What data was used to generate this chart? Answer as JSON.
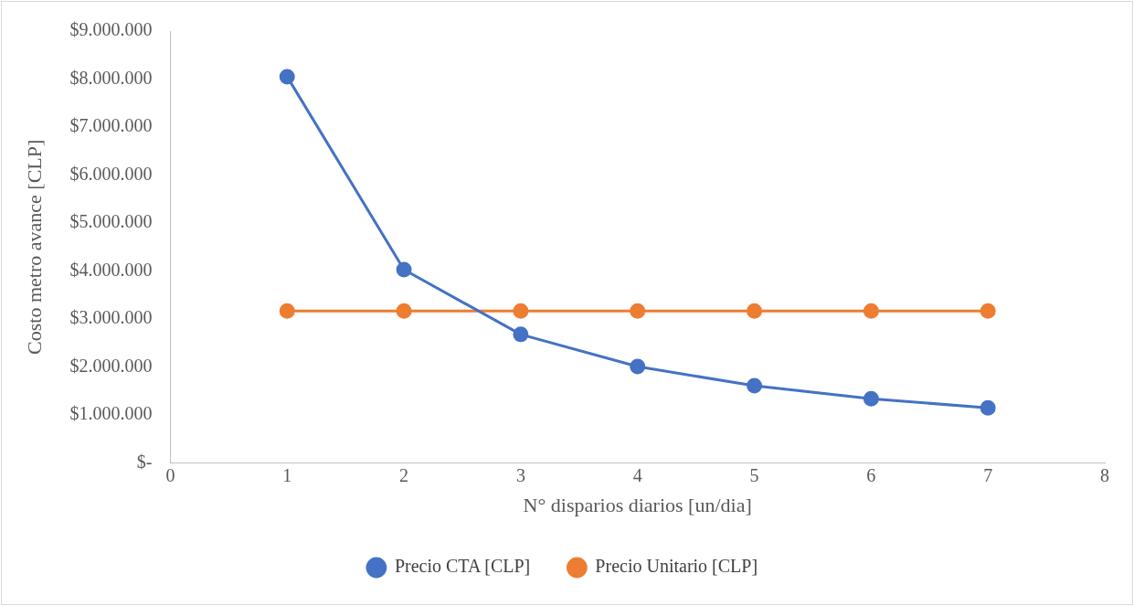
{
  "chart_data": {
    "type": "line",
    "xlabel": "N° disparios diarios [un/dia]",
    "ylabel": "Costo metro avance [CLP]",
    "x": [
      1,
      2,
      3,
      4,
      5,
      6,
      7
    ],
    "series": [
      {
        "name": "Precio CTA [CLP]",
        "color": "#4472c4",
        "values": [
          8050000,
          4030000,
          2680000,
          2010000,
          1610000,
          1340000,
          1150000
        ]
      },
      {
        "name": "Precio Unitario [CLP]",
        "color": "#ed7d31",
        "values": [
          3170000,
          3170000,
          3170000,
          3170000,
          3170000,
          3170000,
          3170000
        ]
      }
    ],
    "xlim": [
      0,
      8
    ],
    "xticks": [
      0,
      1,
      2,
      3,
      4,
      5,
      6,
      7,
      8
    ],
    "ylim": [
      0,
      9000000
    ],
    "yticks": [
      {
        "value": 0,
        "label": "$-"
      },
      {
        "value": 1000000,
        "label": "$1.000.000"
      },
      {
        "value": 2000000,
        "label": "$2.000.000"
      },
      {
        "value": 3000000,
        "label": "$3.000.000"
      },
      {
        "value": 4000000,
        "label": "$4.000.000"
      },
      {
        "value": 5000000,
        "label": "$5.000.000"
      },
      {
        "value": 6000000,
        "label": "$6.000.000"
      },
      {
        "value": 7000000,
        "label": "$7.000.000"
      },
      {
        "value": 8000000,
        "label": "$8.000.000"
      },
      {
        "value": 9000000,
        "label": "$9.000.000"
      }
    ],
    "grid": false,
    "legend": "bottom",
    "marker": "circle",
    "line_style": "solid"
  }
}
